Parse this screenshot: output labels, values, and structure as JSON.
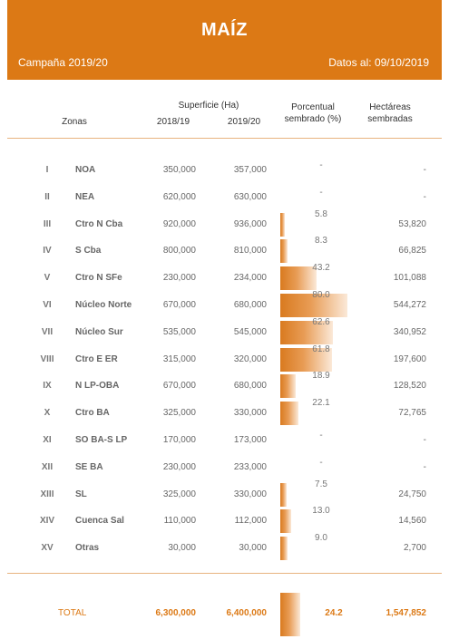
{
  "banner": {
    "title": "MAÍZ",
    "campaign": "Campaña 2019/20",
    "date": "Datos al: 09/10/2019"
  },
  "headers": {
    "zonas": "Zonas",
    "superficie": "Superficie (Ha)",
    "col_2018": "2018/19",
    "col_2019": "2019/20",
    "porcentual_1": "Porcentual",
    "porcentual_2": "sembrado (%)",
    "hectareas_1": "Hectáreas",
    "hectareas_2": "sembradas"
  },
  "chart_data": {
    "type": "table",
    "columns": [
      "",
      "Zonas",
      "2018/19",
      "2019/20",
      "Porcentual sembrado (%)",
      "Hectáreas sembradas"
    ],
    "bar_scale_max_pct": 100,
    "rows": [
      {
        "num": "I",
        "zona": "NOA",
        "s2018": "350,000",
        "s2019": "357,000",
        "pct_label": "-",
        "pct": null,
        "ha": "-"
      },
      {
        "num": "II",
        "zona": "NEA",
        "s2018": "620,000",
        "s2019": "630,000",
        "pct_label": "-",
        "pct": null,
        "ha": "-"
      },
      {
        "num": "III",
        "zona": "Ctro N Cba",
        "s2018": "920,000",
        "s2019": "936,000",
        "pct_label": "5.8",
        "pct": 5.8,
        "ha": "53,820"
      },
      {
        "num": "IV",
        "zona": "S Cba",
        "s2018": "800,000",
        "s2019": "810,000",
        "pct_label": "8.3",
        "pct": 8.3,
        "ha": "66,825"
      },
      {
        "num": "V",
        "zona": "Ctro N SFe",
        "s2018": "230,000",
        "s2019": "234,000",
        "pct_label": "43.2",
        "pct": 43.2,
        "ha": "101,088"
      },
      {
        "num": "VI",
        "zona": "Núcleo Norte",
        "s2018": "670,000",
        "s2019": "680,000",
        "pct_label": "80.0",
        "pct": 80.0,
        "ha": "544,272"
      },
      {
        "num": "VII",
        "zona": "Núcleo Sur",
        "s2018": "535,000",
        "s2019": "545,000",
        "pct_label": "62.6",
        "pct": 62.6,
        "ha": "340,952"
      },
      {
        "num": "VIII",
        "zona": "Ctro E ER",
        "s2018": "315,000",
        "s2019": "320,000",
        "pct_label": "61.8",
        "pct": 61.8,
        "ha": "197,600"
      },
      {
        "num": "IX",
        "zona": "N LP-OBA",
        "s2018": "670,000",
        "s2019": "680,000",
        "pct_label": "18.9",
        "pct": 18.9,
        "ha": "128,520"
      },
      {
        "num": "X",
        "zona": "Ctro BA",
        "s2018": "325,000",
        "s2019": "330,000",
        "pct_label": "22.1",
        "pct": 22.1,
        "ha": "72,765"
      },
      {
        "num": "XI",
        "zona": "SO BA-S LP",
        "s2018": "170,000",
        "s2019": "173,000",
        "pct_label": "-",
        "pct": null,
        "ha": "-"
      },
      {
        "num": "XII",
        "zona": "SE BA",
        "s2018": "230,000",
        "s2019": "233,000",
        "pct_label": "-",
        "pct": null,
        "ha": "-"
      },
      {
        "num": "XIII",
        "zona": "SL",
        "s2018": "325,000",
        "s2019": "330,000",
        "pct_label": "7.5",
        "pct": 7.5,
        "ha": "24,750"
      },
      {
        "num": "XIV",
        "zona": "Cuenca Sal",
        "s2018": "110,000",
        "s2019": "112,000",
        "pct_label": "13.0",
        "pct": 13.0,
        "ha": "14,560"
      },
      {
        "num": "XV",
        "zona": "Otras",
        "s2018": "30,000",
        "s2019": "30,000",
        "pct_label": "9.0",
        "pct": 9.0,
        "ha": "2,700"
      }
    ],
    "total": {
      "label": "TOTAL",
      "s2018": "6,300,000",
      "s2019": "6,400,000",
      "pct_label": "24.2",
      "pct": 24.2,
      "ha": "1,547,852"
    }
  },
  "colors": {
    "accent": "#dc7915",
    "bar_start": "#d97a1f",
    "bar_end": "#fbe9d8"
  }
}
